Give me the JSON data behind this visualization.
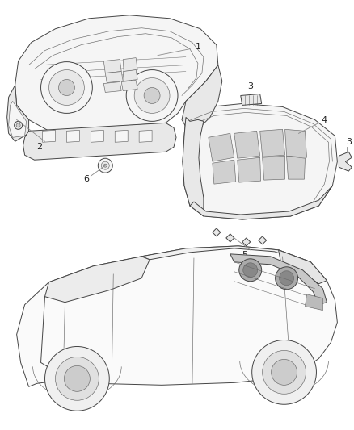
{
  "background_color": "#ffffff",
  "line_color": "#444444",
  "line_color_thin": "#666666",
  "fill_light": "#f5f5f5",
  "fill_mid": "#e8e8e8",
  "fill_dark": "#d0d0d0",
  "figsize": [
    4.38,
    5.33
  ],
  "dpi": 100,
  "label_fs": 8,
  "label_color": "#222222"
}
